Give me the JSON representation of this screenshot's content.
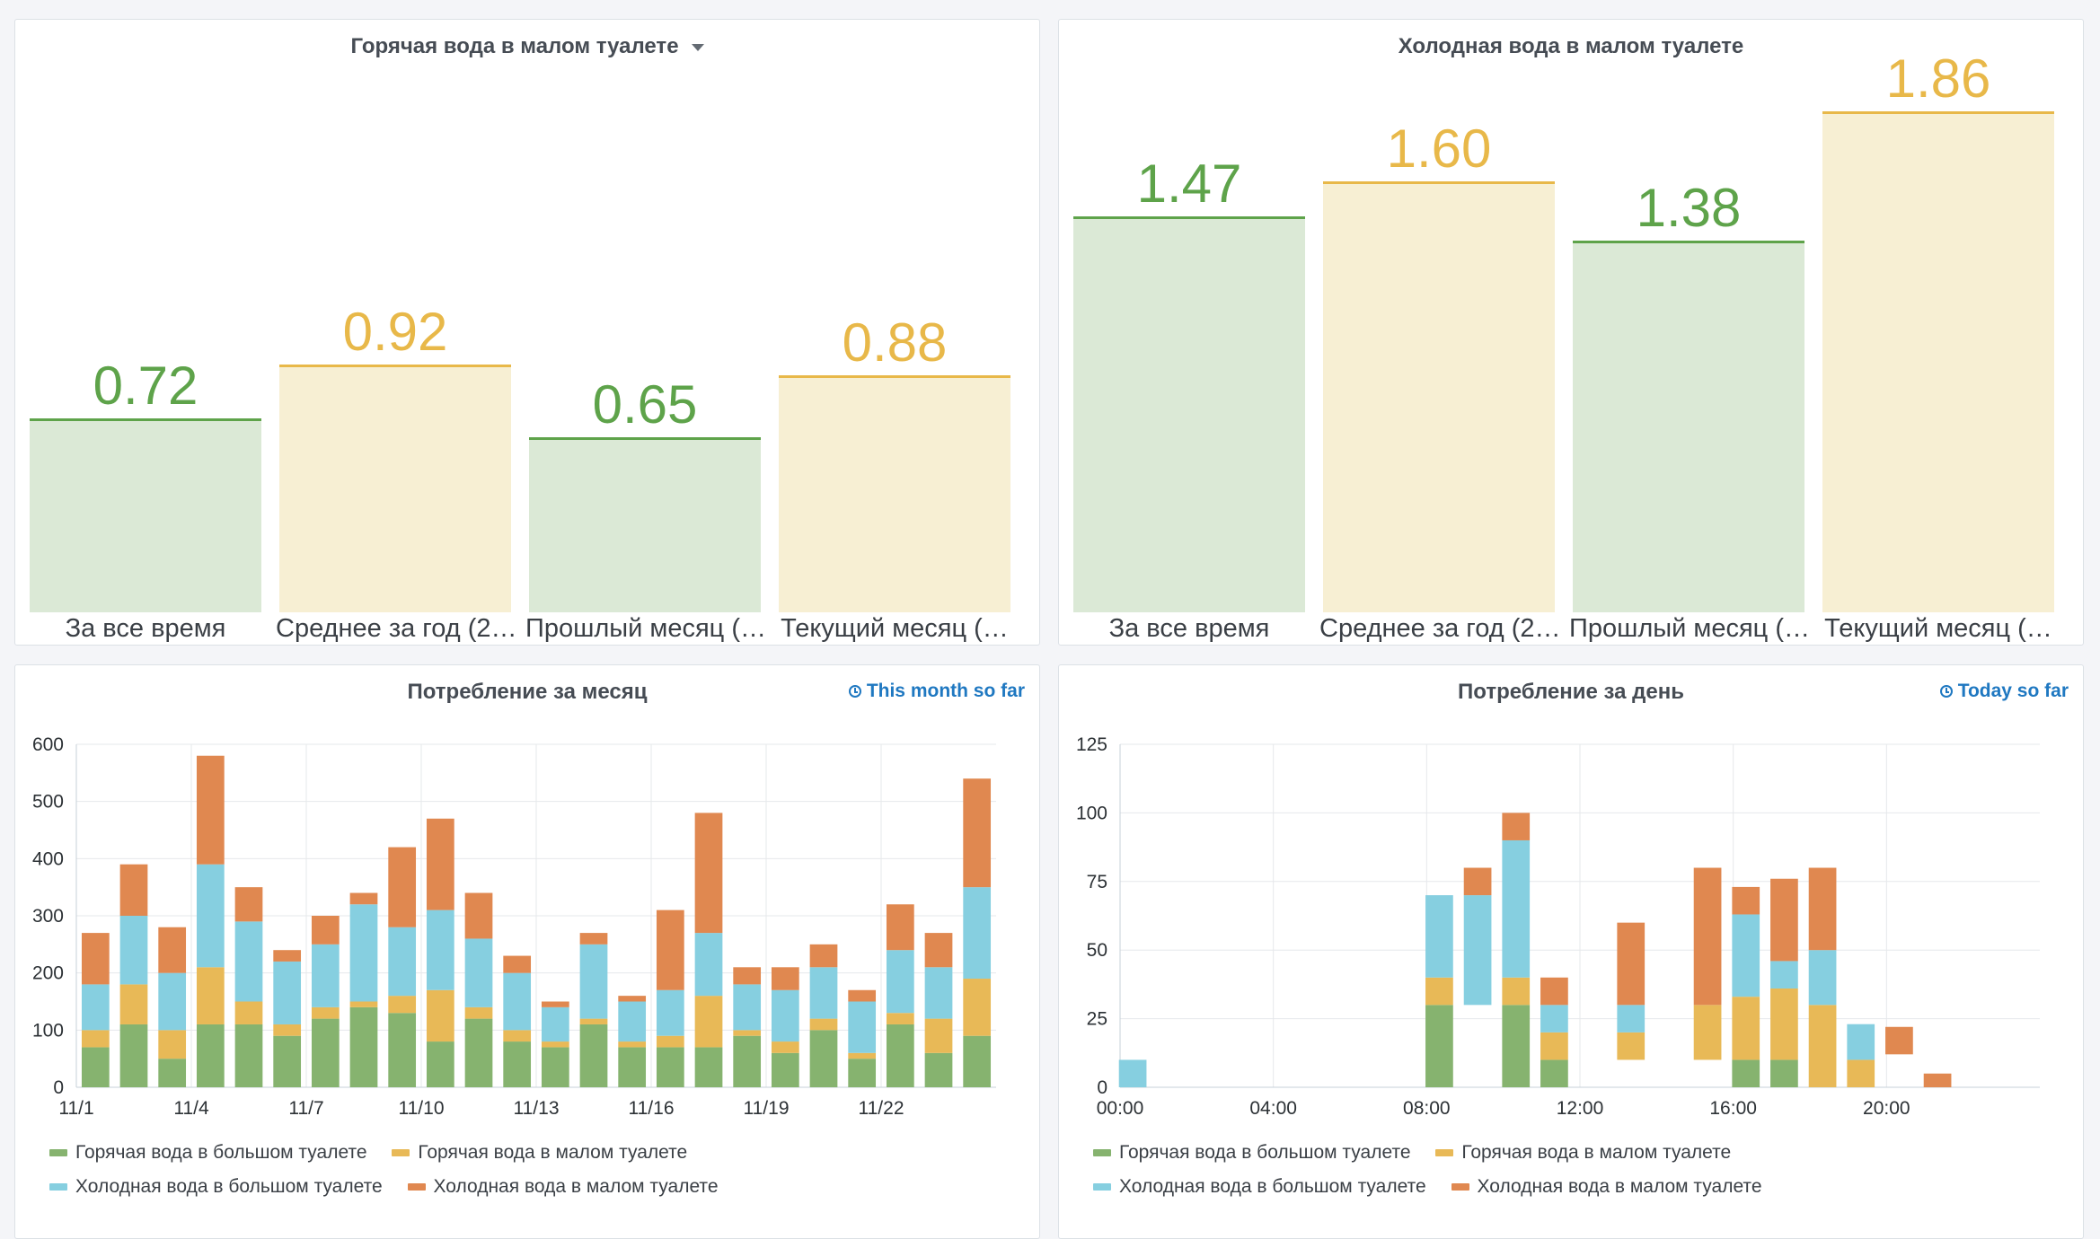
{
  "colors": {
    "green": "#5ea34a",
    "yellow": "#e8b849",
    "green_fill": "#dbe9d6",
    "yellow_fill": "#f7efd3",
    "hot_big": "#86b36f",
    "hot_small": "#e8b957",
    "cold_big": "#86cfe0",
    "cold_small": "#e08850"
  },
  "panels": {
    "hot": {
      "title": "Горячая вода в малом туалете",
      "stats": [
        {
          "value": "0.72",
          "num": 0.72,
          "label": "За все время",
          "color": "green"
        },
        {
          "value": "0.92",
          "num": 0.92,
          "label": "Среднее за год (2…",
          "color": "yellow"
        },
        {
          "value": "0.65",
          "num": 0.65,
          "label": "Прошлый месяц (…",
          "color": "green"
        },
        {
          "value": "0.88",
          "num": 0.88,
          "label": "Текущий месяц (…",
          "color": "yellow"
        }
      ]
    },
    "cold": {
      "title": "Холодная вода в малом туалете",
      "stats": [
        {
          "value": "1.47",
          "num": 1.47,
          "label": "За все время",
          "color": "green"
        },
        {
          "value": "1.60",
          "num": 1.6,
          "label": "Среднее за год (2…",
          "color": "yellow"
        },
        {
          "value": "1.38",
          "num": 1.38,
          "label": "Прошлый месяц (…",
          "color": "green"
        },
        {
          "value": "1.86",
          "num": 1.86,
          "label": "Текущий месяц (…",
          "color": "yellow"
        }
      ]
    },
    "month": {
      "title": "Потребление за месяц",
      "time_info": "This month so far"
    },
    "day": {
      "title": "Потребление за день",
      "time_info": "Today so far"
    }
  },
  "legend": {
    "hot_big": "Горячая вода в большом туалете",
    "hot_small": "Горячая вода в малом туалете",
    "cold_big": "Холодная вода в большом туалете",
    "cold_small": "Холодная вода в малом туалете"
  },
  "chart_data": [
    {
      "type": "bar",
      "stacked": true,
      "title": "Потребление за месяц",
      "ylim": [
        0,
        600
      ],
      "yticks": [
        0,
        100,
        200,
        300,
        400,
        500,
        600
      ],
      "x": [
        "11/1",
        "11/2",
        "11/3",
        "11/4",
        "11/5",
        "11/6",
        "11/7",
        "11/8",
        "11/9",
        "11/10",
        "11/11",
        "11/12",
        "11/13",
        "11/14",
        "11/15",
        "11/16",
        "11/17",
        "11/18",
        "11/19",
        "11/20",
        "11/21",
        "11/22",
        "11/23",
        "11/24"
      ],
      "xtick_labels": [
        "11/1",
        "11/4",
        "11/7",
        "11/10",
        "11/13",
        "11/16",
        "11/19",
        "11/22"
      ],
      "series": [
        {
          "name": "Горячая вода в большом туалете",
          "color_key": "hot_big",
          "values": [
            70,
            110,
            50,
            110,
            110,
            90,
            120,
            140,
            130,
            80,
            120,
            80,
            70,
            110,
            70,
            70,
            70,
            90,
            60,
            100,
            50,
            110,
            60,
            90
          ]
        },
        {
          "name": "Горячая вода в малом туалете",
          "color_key": "hot_small",
          "values": [
            30,
            70,
            50,
            100,
            40,
            20,
            20,
            10,
            30,
            90,
            20,
            20,
            10,
            10,
            10,
            20,
            90,
            10,
            20,
            20,
            10,
            20,
            60,
            100
          ]
        },
        {
          "name": "Холодная вода в большом туалете",
          "color_key": "cold_big",
          "values": [
            80,
            120,
            100,
            180,
            140,
            110,
            110,
            170,
            120,
            140,
            120,
            100,
            60,
            130,
            70,
            80,
            110,
            80,
            90,
            90,
            90,
            110,
            90,
            160
          ]
        },
        {
          "name": "Холодная вода в малом туалете",
          "color_key": "cold_small",
          "values": [
            90,
            90,
            80,
            190,
            60,
            20,
            50,
            20,
            140,
            160,
            80,
            30,
            10,
            20,
            10,
            140,
            210,
            30,
            40,
            40,
            20,
            80,
            60,
            190
          ]
        }
      ]
    },
    {
      "type": "bar",
      "stacked": true,
      "title": "Потребление за день",
      "ylim": [
        0,
        125
      ],
      "yticks": [
        0,
        25,
        50,
        75,
        100,
        125
      ],
      "xlim": [
        0,
        24
      ],
      "xtick_labels": [
        "00:00",
        "04:00",
        "08:00",
        "12:00",
        "16:00",
        "20:00"
      ],
      "bars": [
        {
          "hour": 0.33,
          "segments": [
            {
              "from": 0,
              "to": 10,
              "color_key": "cold_big"
            }
          ]
        },
        {
          "hour": 8.33,
          "segments": [
            {
              "from": 0,
              "to": 30,
              "color_key": "hot_big"
            },
            {
              "from": 30,
              "to": 40,
              "color_key": "hot_small"
            },
            {
              "from": 40,
              "to": 70,
              "color_key": "cold_big"
            }
          ]
        },
        {
          "hour": 9.33,
          "segments": [
            {
              "from": 30,
              "to": 70,
              "color_key": "cold_big"
            },
            {
              "from": 70,
              "to": 80,
              "color_key": "cold_small"
            }
          ]
        },
        {
          "hour": 10.33,
          "segments": [
            {
              "from": 0,
              "to": 30,
              "color_key": "hot_big"
            },
            {
              "from": 30,
              "to": 40,
              "color_key": "hot_small"
            },
            {
              "from": 40,
              "to": 90,
              "color_key": "cold_big"
            },
            {
              "from": 90,
              "to": 100,
              "color_key": "cold_small"
            }
          ]
        },
        {
          "hour": 11.33,
          "segments": [
            {
              "from": 0,
              "to": 10,
              "color_key": "hot_big"
            },
            {
              "from": 10,
              "to": 20,
              "color_key": "hot_small"
            },
            {
              "from": 20,
              "to": 30,
              "color_key": "cold_big"
            },
            {
              "from": 30,
              "to": 40,
              "color_key": "cold_small"
            }
          ]
        },
        {
          "hour": 13.33,
          "segments": [
            {
              "from": 10,
              "to": 20,
              "color_key": "hot_small"
            },
            {
              "from": 20,
              "to": 30,
              "color_key": "cold_big"
            },
            {
              "from": 30,
              "to": 60,
              "color_key": "cold_small"
            }
          ]
        },
        {
          "hour": 15.33,
          "segments": [
            {
              "from": 10,
              "to": 30,
              "color_key": "hot_small"
            },
            {
              "from": 30,
              "to": 80,
              "color_key": "cold_small"
            }
          ]
        },
        {
          "hour": 16.33,
          "segments": [
            {
              "from": 0,
              "to": 10,
              "color_key": "hot_big"
            },
            {
              "from": 10,
              "to": 33,
              "color_key": "hot_small"
            },
            {
              "from": 33,
              "to": 63,
              "color_key": "cold_big"
            },
            {
              "from": 63,
              "to": 73,
              "color_key": "cold_small"
            }
          ]
        },
        {
          "hour": 17.33,
          "segments": [
            {
              "from": 0,
              "to": 10,
              "color_key": "hot_big"
            },
            {
              "from": 10,
              "to": 36,
              "color_key": "hot_small"
            },
            {
              "from": 36,
              "to": 46,
              "color_key": "cold_big"
            },
            {
              "from": 46,
              "to": 76,
              "color_key": "cold_small"
            }
          ]
        },
        {
          "hour": 18.33,
          "segments": [
            {
              "from": 0,
              "to": 30,
              "color_key": "hot_small"
            },
            {
              "from": 30,
              "to": 50,
              "color_key": "cold_big"
            },
            {
              "from": 50,
              "to": 80,
              "color_key": "cold_small"
            }
          ]
        },
        {
          "hour": 19.33,
          "segments": [
            {
              "from": 0,
              "to": 10,
              "color_key": "hot_small"
            },
            {
              "from": 10,
              "to": 23,
              "color_key": "cold_big"
            }
          ]
        },
        {
          "hour": 20.33,
          "segments": [
            {
              "from": 12,
              "to": 22,
              "color_key": "cold_small"
            }
          ]
        },
        {
          "hour": 21.33,
          "segments": [
            {
              "from": 0,
              "to": 5,
              "color_key": "cold_small"
            }
          ]
        }
      ]
    }
  ]
}
